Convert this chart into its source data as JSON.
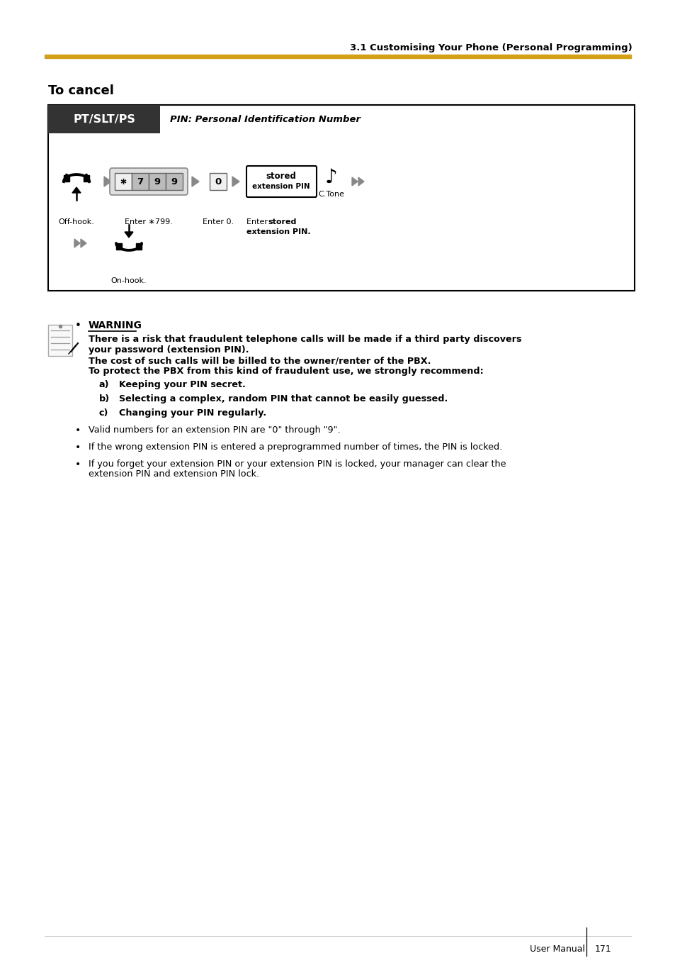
{
  "page_bg": "#ffffff",
  "page_title": "3.1 Customising Your Phone (Personal Programming)",
  "gold_color": "#D4A017",
  "section_title": "To cancel",
  "box_header": "PT/SLT/PS",
  "box_subtitle": "PIN: Personal Identification Number",
  "header_bg": "#333333",
  "step_label_1": "Off-hook.",
  "step_label_2": "Enter ∗799.",
  "step_label_3": "Enter 0.",
  "step_label_5": "On-hook.",
  "stored_pin_line1": "stored",
  "stored_pin_line2": "extension PIN",
  "ctone_label": "C.Tone",
  "warning_header": "WARNING",
  "warning_bold_lines": [
    "There is a risk that fraudulent telephone calls will be made if a third party discovers",
    "your password (extension PIN).",
    "The cost of such calls will be billed to the owner/renter of the PBX.",
    "To protect the PBX from this kind of fraudulent use, we strongly recommend:"
  ],
  "abc_items": [
    [
      "a)",
      "Keeping your PIN secret."
    ],
    [
      "b)",
      "Selecting a complex, random PIN that cannot be easily guessed."
    ],
    [
      "c)",
      "Changing your PIN regularly."
    ]
  ],
  "bullet_items": [
    [
      "Valid numbers for an extension PIN are \"0\" through \"9\"."
    ],
    [
      "If the wrong extension PIN is entered a preprogrammed number of times, the PIN is locked."
    ],
    [
      "If you forget your extension PIN or your extension PIN is locked, your manager can clear the",
      "extension PIN and extension PIN lock."
    ]
  ],
  "footer_text": "User Manual",
  "footer_num": "171"
}
